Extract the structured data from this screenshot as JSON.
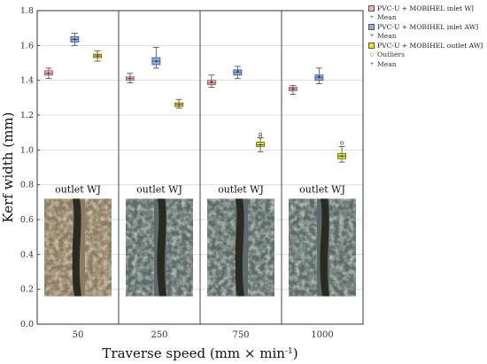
{
  "chart_data": {
    "type": "box",
    "xlabel": "Traverse speed (mm × min",
    "xlabel_sup": "-1",
    "xlabel_close": ")",
    "ylabel": "Kerf width (mm)",
    "ylim": [
      0.0,
      1.8
    ],
    "yticks": [
      "0.0",
      "0.2",
      "0.4",
      "0.6",
      "0.8",
      "1.0",
      "1.2",
      "1.4",
      "1.6",
      "1.8"
    ],
    "categories": [
      "50",
      "250",
      "750",
      "1000"
    ],
    "grid": "horizontal",
    "legend_position": "top-right outside",
    "series": [
      {
        "name": "PVC-U + MOBIHEL inlet WJ",
        "mean_label": "Mean",
        "color": "#f2b2b8",
        "stroke": "#a05a60",
        "boxes": [
          {
            "category": "50",
            "whisker_low": 1.41,
            "q1": 1.43,
            "median": 1.44,
            "q3": 1.455,
            "whisker_high": 1.47,
            "mean": 1.44
          },
          {
            "category": "250",
            "whisker_low": 1.385,
            "q1": 1.4,
            "median": 1.41,
            "q3": 1.42,
            "whisker_high": 1.44,
            "mean": 1.41
          },
          {
            "category": "750",
            "whisker_low": 1.36,
            "q1": 1.375,
            "median": 1.385,
            "q3": 1.4,
            "whisker_high": 1.43,
            "mean": 1.39
          },
          {
            "category": "1000",
            "whisker_low": 1.32,
            "q1": 1.34,
            "median": 1.35,
            "q3": 1.36,
            "whisker_high": 1.37,
            "mean": 1.35
          }
        ]
      },
      {
        "name": "PVC-U + MOBIHEL inlet AWJ",
        "mean_label": "Mean",
        "color": "#8fb0e0",
        "stroke": "#3a5f95",
        "boxes": [
          {
            "category": "50",
            "whisker_low": 1.6,
            "q1": 1.62,
            "median": 1.635,
            "q3": 1.65,
            "whisker_high": 1.67,
            "mean": 1.635
          },
          {
            "category": "250",
            "whisker_low": 1.47,
            "q1": 1.49,
            "median": 1.51,
            "q3": 1.53,
            "whisker_high": 1.59,
            "mean": 1.51
          },
          {
            "category": "750",
            "whisker_low": 1.41,
            "q1": 1.43,
            "median": 1.445,
            "q3": 1.46,
            "whisker_high": 1.48,
            "mean": 1.45
          },
          {
            "category": "1000",
            "whisker_low": 1.38,
            "q1": 1.4,
            "median": 1.415,
            "q3": 1.43,
            "whisker_high": 1.47,
            "mean": 1.42
          }
        ]
      },
      {
        "name": "PVC-U + MOBIHEL outlet AWJ",
        "mean_label": "Mean",
        "outliers_label": "Outliers",
        "color": "#f5e31a",
        "stroke": "#6f6a10",
        "boxes": [
          {
            "category": "50",
            "whisker_low": 1.51,
            "q1": 1.53,
            "median": 1.54,
            "q3": 1.55,
            "whisker_high": 1.57,
            "mean": 1.54,
            "outliers": []
          },
          {
            "category": "250",
            "whisker_low": 1.24,
            "q1": 1.25,
            "median": 1.26,
            "q3": 1.27,
            "whisker_high": 1.29,
            "mean": 1.26,
            "outliers": []
          },
          {
            "category": "750",
            "whisker_low": 0.99,
            "q1": 1.02,
            "median": 1.03,
            "q3": 1.045,
            "whisker_high": 1.07,
            "mean": 1.03,
            "outliers": [
              1.09,
              1.075
            ]
          },
          {
            "category": "1000",
            "whisker_low": 0.93,
            "q1": 0.95,
            "median": 0.965,
            "q3": 0.98,
            "whisker_high": 1.02,
            "mean": 0.965,
            "outliers": [
              1.04
            ]
          }
        ]
      }
    ],
    "annotations": [
      "outlet WJ",
      "outlet WJ",
      "outlet WJ",
      "outlet WJ"
    ]
  },
  "colors": {
    "gridline": "#d8d8d8",
    "axis": "#333333",
    "photo_base": "#8c7d62",
    "photo_dark": "#2b2a22",
    "photo_fiber": "#ece2c7",
    "photo_bg": "#5b6b6a"
  }
}
